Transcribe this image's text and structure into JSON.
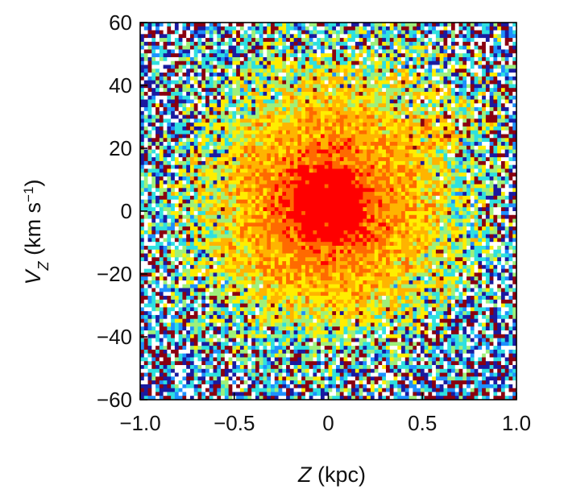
{
  "chart_data": {
    "type": "heatmap",
    "title": "",
    "xlabel": {
      "symbol": "Z",
      "unit": "(kpc)"
    },
    "ylabel": {
      "symbol": "V",
      "subscript": "Z",
      "unit_prefix": "(km s",
      "unit_exponent": "−1",
      "unit_suffix": ")"
    },
    "xlim": [
      -1.0,
      1.0
    ],
    "ylim": [
      -60,
      60
    ],
    "x_ticks": [
      -1.0,
      -0.5,
      0,
      0.5,
      1.0
    ],
    "x_tick_labels": [
      "−1.0",
      "−0.5",
      "0",
      "0.5",
      "1.0"
    ],
    "y_ticks": [
      -60,
      -40,
      -20,
      0,
      20,
      40,
      60
    ],
    "y_tick_labels": [
      "−60",
      "−40",
      "−20",
      "0",
      "20",
      "40",
      "60"
    ],
    "bins": {
      "nx": 98,
      "ny": 98
    },
    "colormap": [
      "#ff0000",
      "#ff6a00",
      "#ffb400",
      "#ffee00",
      "#9ef07a",
      "#2ee0e0",
      "#1e90ff",
      "#1a1aa0",
      "#8a0010",
      "#ffffff"
    ],
    "structure": {
      "core_center": [
        0.0,
        2
      ],
      "core_radius": [
        0.35,
        22
      ],
      "lower_cool_band_vz": -43,
      "upper_right_warm_region": {
        "z": [
          0.3,
          0.9
        ],
        "vz": [
          20,
          60
        ]
      }
    },
    "grid": false,
    "legend": "none"
  }
}
